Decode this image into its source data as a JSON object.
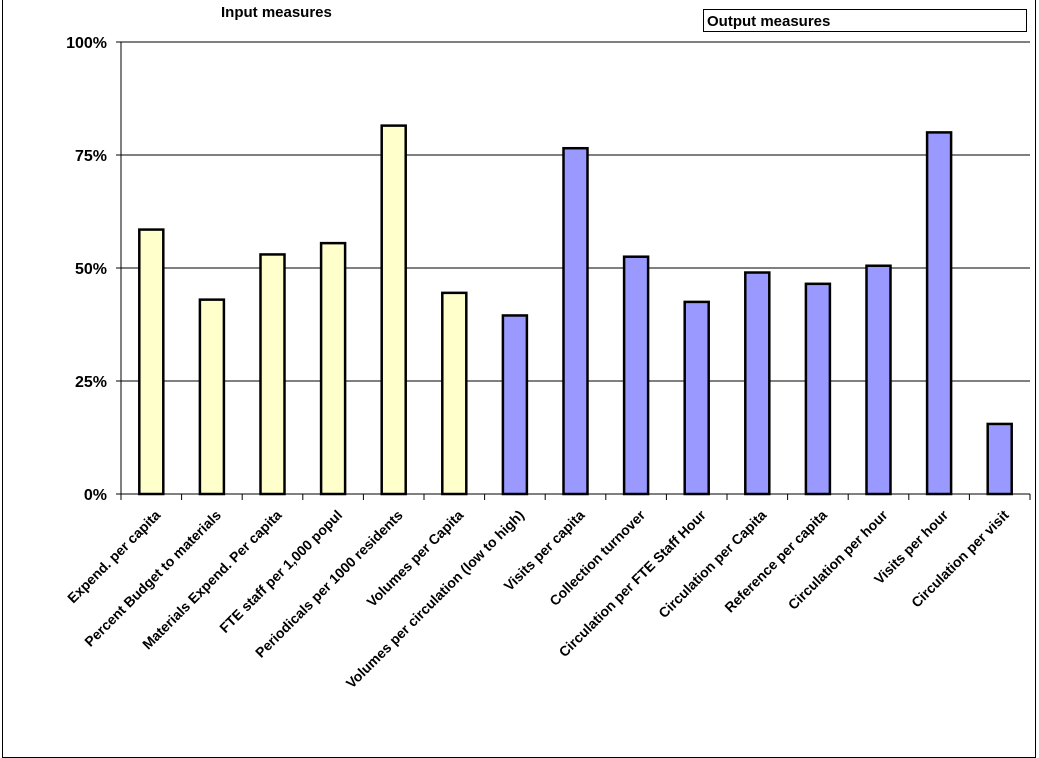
{
  "labels": {
    "input_group": "Input measures",
    "output_group": "Output measures"
  },
  "colors": {
    "input": "#ffffcc",
    "output": "#9999ff",
    "outline": "#000000",
    "gridline": "#000000"
  },
  "chart_data": {
    "type": "bar",
    "title": "",
    "xlabel": "",
    "ylabel": "",
    "ylim": [
      0,
      100
    ],
    "yticks": [
      0,
      25,
      50,
      75,
      100
    ],
    "ytick_labels": [
      "0%",
      "25%",
      "50%",
      "75%",
      "100%"
    ],
    "grid": true,
    "categories": [
      "Expend. per capita",
      "Percent Budget to materials",
      "Materials Expend. Per capita",
      "FTE staff per 1,000 popul",
      "Periodicals per 1000 residents",
      "Volumes per Capita",
      "Volumes per circulation (low to high)",
      "Visits per capita",
      "Collection turnover",
      "Circulation per FTE Staff Hour",
      "Circulation per Capita",
      "Reference per capita",
      "Circulation per hour",
      "Visits per hour",
      "Circulation per visit"
    ],
    "values": [
      58.5,
      43,
      53,
      55.5,
      81.5,
      44.5,
      39.5,
      76.5,
      52.5,
      42.5,
      49,
      46.5,
      50.5,
      80,
      15.5
    ],
    "groups": [
      "input",
      "input",
      "input",
      "input",
      "input",
      "input",
      "output",
      "output",
      "output",
      "output",
      "output",
      "output",
      "output",
      "output",
      "output"
    ]
  }
}
